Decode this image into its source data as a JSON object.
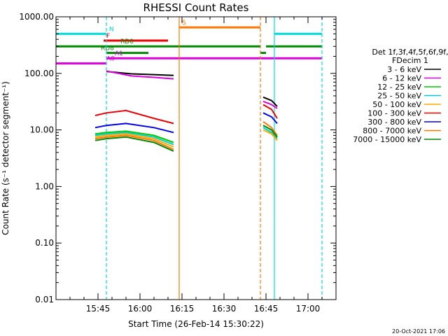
{
  "chart_data": {
    "type": "line",
    "title": "RHESSI Count Rates",
    "xlabel": "Start Time (26-Feb-14 15:30:22)",
    "ylabel": "Count Rate (s⁻¹ detector segment⁻¹)",
    "y_scale": "log",
    "ylim": [
      0.01,
      1000.0
    ],
    "y_ticks": [
      "0.01",
      "0.10",
      "1.00",
      "10.00",
      "100.00",
      "1000.00"
    ],
    "x_ticks": [
      "15:45",
      "16:00",
      "16:15",
      "16:30",
      "16:45",
      "17:00"
    ],
    "grid": false,
    "legend_position": "right",
    "legend_header": [
      "Det 1f,3f,4f,5f,6f,9f,",
      "FDecim 1"
    ],
    "series": [
      {
        "name": "3 - 6 keV",
        "color": "#000000",
        "segments": [
          {
            "x": [
              "15:48",
              "15:57",
              "16:05",
              "16:12"
            ],
            "y": [
              108,
              98,
              95,
              92
            ]
          },
          {
            "x": [
              "16:44",
              "16:47",
              "16:49"
            ],
            "y": [
              38,
              33,
              26
            ]
          }
        ]
      },
      {
        "name": "6 - 12 keV",
        "color": "#dd00dd",
        "segments": [
          {
            "x": [
              "15:48",
              "15:57",
              "16:05",
              "16:12"
            ],
            "y": [
              110,
              90,
              85,
              80
            ]
          },
          {
            "x": [
              "16:44",
              "16:47",
              "16:49"
            ],
            "y": [
              32,
              28,
              24
            ]
          }
        ]
      },
      {
        "name": "12 - 25 keV",
        "color": "#00cc00",
        "segments": [
          {
            "x": [
              "15:44",
              "15:48",
              "15:55",
              "16:05",
              "16:12"
            ],
            "y": [
              8.5,
              9.0,
              9.5,
              8.0,
              6.0
            ]
          },
          {
            "x": [
              "16:44",
              "16:47",
              "16:49"
            ],
            "y": [
              12,
              10,
              7.5
            ]
          }
        ]
      },
      {
        "name": "25 - 50 keV",
        "color": "#00cccc",
        "segments": [
          {
            "x": [
              "15:44",
              "15:48",
              "15:55",
              "16:05",
              "16:12"
            ],
            "y": [
              8.0,
              8.5,
              9.0,
              7.5,
              5.5
            ]
          },
          {
            "x": [
              "16:44",
              "16:47",
              "16:49"
            ],
            "y": [
              11,
              9,
              7
            ]
          }
        ]
      },
      {
        "name": "50 - 100 keV",
        "color": "#ffaa00",
        "segments": [
          {
            "x": [
              "15:44",
              "15:48",
              "15:55",
              "16:05",
              "16:12"
            ],
            "y": [
              7.5,
              8.0,
              8.5,
              7.0,
              5.0
            ]
          },
          {
            "x": [
              "16:44",
              "16:47",
              "16:49"
            ],
            "y": [
              10,
              8.5,
              6.5
            ]
          }
        ]
      },
      {
        "name": "100 - 300 keV",
        "color": "#ee0000",
        "segments": [
          {
            "x": [
              "15:44",
              "15:48",
              "15:55",
              "16:05",
              "16:12"
            ],
            "y": [
              18,
              20,
              22,
              16,
              13
            ]
          },
          {
            "x": [
              "16:44",
              "16:47",
              "16:49"
            ],
            "y": [
              28,
              23,
              16
            ]
          }
        ]
      },
      {
        "name": "300 - 800 keV",
        "color": "#0000ee",
        "segments": [
          {
            "x": [
              "15:44",
              "15:48",
              "15:55",
              "16:05",
              "16:12"
            ],
            "y": [
              11,
              12,
              13,
              11,
              9
            ]
          },
          {
            "x": [
              "16:44",
              "16:47",
              "16:49"
            ],
            "y": [
              20,
              17,
              13
            ]
          }
        ]
      },
      {
        "name": "800 - 7000 keV",
        "color": "#ff7700",
        "segments": [
          {
            "x": [
              "15:44",
              "15:48",
              "15:55",
              "16:05",
              "16:12"
            ],
            "y": [
              7,
              7.5,
              8,
              6.5,
              4.5
            ]
          },
          {
            "x": [
              "16:44",
              "16:47",
              "16:49"
            ],
            "y": [
              14,
              11,
              8
            ]
          }
        ]
      },
      {
        "name": "7000 - 15000 keV",
        "color": "#008800",
        "segments": [
          {
            "x": [
              "15:44",
              "15:48",
              "15:55",
              "16:05",
              "16:12"
            ],
            "y": [
              6.5,
              7,
              7.5,
              6,
              4.2
            ]
          },
          {
            "x": [
              "16:44",
              "16:47",
              "16:49"
            ],
            "y": [
              12,
              10,
              7.5
            ]
          }
        ]
      }
    ],
    "flags": [
      {
        "label": "N",
        "color": "#00dddd",
        "y": 500,
        "spans": [
          [
            "15:30",
            "15:48"
          ],
          [
            "16:48",
            "17:05"
          ]
        ],
        "label_at": "15:48"
      },
      {
        "label": "S",
        "color": "#ff7700",
        "y": 650,
        "spans": [
          [
            "16:14",
            "16:43"
          ]
        ],
        "label_at": "16:14"
      },
      {
        "label": "F",
        "color": "#ee0000",
        "y": 380,
        "spans": [
          [
            "15:47",
            "16:10"
          ]
        ],
        "label_at": "15:47"
      },
      {
        "label": "RD0",
        "color": "#008800",
        "y": 300,
        "spans": [
          [
            "15:30",
            "16:43"
          ],
          [
            "16:45",
            "17:05"
          ]
        ],
        "label_at": "15:52"
      },
      {
        "label": "RD8",
        "color": "#008800",
        "y": 230,
        "spans": [
          [
            "15:48",
            "16:03"
          ],
          [
            "16:43",
            "16:45"
          ]
        ],
        "label_at": "15:45"
      },
      {
        "label": "A0",
        "color": "#dd00dd",
        "y": 150,
        "spans": [
          [
            "15:30",
            "15:48"
          ]
        ],
        "label_at": "15:47"
      },
      {
        "label": "A1",
        "color": "#dd00dd",
        "y": 185,
        "spans": [
          [
            "15:48",
            "17:05"
          ]
        ],
        "label_at": "15:50"
      }
    ],
    "vlines": [
      {
        "x": "15:48",
        "color": "#00dddd",
        "dashed": true
      },
      {
        "x": "17:05",
        "color": "#00dddd",
        "dashed": true
      },
      {
        "x": "16:48",
        "color": "#00dddd",
        "dashed": false
      },
      {
        "x": "16:14",
        "color": "#ff7700",
        "dashed": false
      },
      {
        "x": "16:43",
        "color": "#ff7700",
        "dashed": true
      }
    ]
  },
  "footer": {
    "timestamp": "20-Oct-2021 17:06"
  }
}
